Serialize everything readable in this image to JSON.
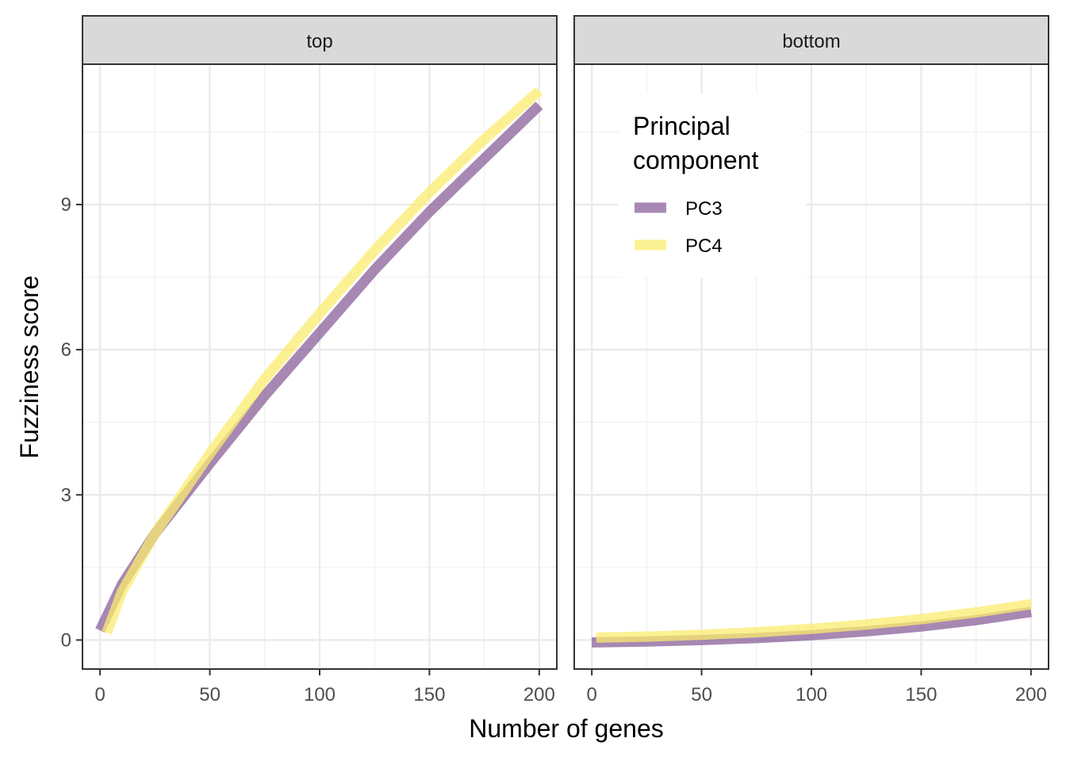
{
  "chart_data": {
    "type": "line",
    "xlabel": "Number of genes",
    "ylabel": "Fuzziness score",
    "xlim": [
      -8,
      208
    ],
    "ylim": [
      -0.6,
      11.9
    ],
    "x_ticks": [
      0,
      50,
      100,
      150,
      200
    ],
    "x_tick_labels": [
      "0",
      "50",
      "100",
      "150",
      "200"
    ],
    "y_ticks": [
      0,
      3,
      6,
      9
    ],
    "y_tick_labels": [
      "0",
      "3",
      "6",
      "9"
    ],
    "grid": true,
    "legend": {
      "title_lines": [
        "Principal",
        "component"
      ],
      "placement": "inside-top-left-of-right-panel",
      "entries": [
        {
          "name": "PC3",
          "color": "#8a6099"
        },
        {
          "name": "PC4",
          "color": "#fbec6e"
        }
      ]
    },
    "panels": [
      {
        "strip": "top",
        "series": [
          {
            "name": "PC3",
            "color": "#8a6099",
            "x": [
              0,
              10,
              25,
              50,
              75,
              100,
              125,
              150,
              175,
              200
            ],
            "y": [
              0.2,
              1.15,
              2.2,
              3.65,
              5.05,
              6.35,
              7.65,
              8.85,
              9.95,
              11.05
            ]
          },
          {
            "name": "PC4",
            "color": "#fbec6e",
            "x": [
              3,
              10,
              25,
              50,
              75,
              100,
              125,
              150,
              175,
              200
            ],
            "y": [
              0.15,
              1.0,
              2.2,
              3.85,
              5.4,
              6.75,
              8.05,
              9.25,
              10.35,
              11.35
            ]
          }
        ]
      },
      {
        "strip": "bottom",
        "series": [
          {
            "name": "PC3",
            "color": "#8a6099",
            "x": [
              0,
              25,
              50,
              75,
              100,
              125,
              150,
              175,
              200
            ],
            "y": [
              -0.05,
              -0.03,
              0.0,
              0.04,
              0.1,
              0.18,
              0.28,
              0.41,
              0.58
            ]
          },
          {
            "name": "PC4",
            "color": "#fbec6e",
            "x": [
              2,
              25,
              50,
              75,
              100,
              125,
              150,
              175,
              200
            ],
            "y": [
              0.05,
              0.07,
              0.11,
              0.16,
              0.23,
              0.32,
              0.43,
              0.57,
              0.74
            ]
          }
        ]
      }
    ]
  }
}
